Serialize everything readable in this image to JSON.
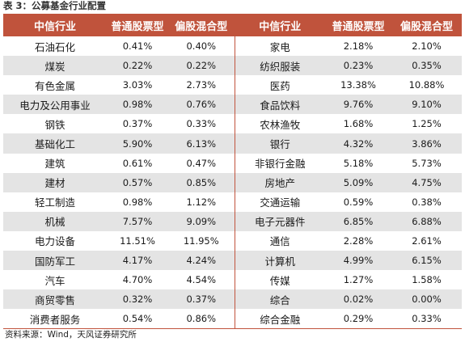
{
  "caption": "表 3：公募基金行业配置",
  "headers": [
    "中信行业",
    "普通股票型",
    "偏股混合型",
    "中信行业",
    "普通股票型",
    "偏股混合型"
  ],
  "rows": [
    [
      "石油石化",
      "0.41%",
      "0.40%",
      "家电",
      "2.18%",
      "2.10%"
    ],
    [
      "煤炭",
      "0.22%",
      "0.22%",
      "纺织服装",
      "0.23%",
      "0.35%"
    ],
    [
      "有色金属",
      "3.03%",
      "2.73%",
      "医药",
      "13.38%",
      "10.88%"
    ],
    [
      "电力及公用事业",
      "0.98%",
      "0.76%",
      "食品饮料",
      "9.76%",
      "9.10%"
    ],
    [
      "钢铁",
      "0.37%",
      "0.33%",
      "农林渔牧",
      "1.68%",
      "1.25%"
    ],
    [
      "基础化工",
      "5.90%",
      "6.13%",
      "银行",
      "4.32%",
      "3.86%"
    ],
    [
      "建筑",
      "0.61%",
      "0.47%",
      "非银行金融",
      "5.18%",
      "5.73%"
    ],
    [
      "建材",
      "0.57%",
      "0.85%",
      "房地产",
      "5.09%",
      "4.75%"
    ],
    [
      "轻工制造",
      "0.98%",
      "1.12%",
      "交通运输",
      "0.59%",
      "0.38%"
    ],
    [
      "机械",
      "7.57%",
      "9.09%",
      "电子元器件",
      "6.85%",
      "6.88%"
    ],
    [
      "电力设备",
      "11.51%",
      "11.95%",
      "通信",
      "2.28%",
      "2.61%"
    ],
    [
      "国防军工",
      "4.17%",
      "4.24%",
      "计算机",
      "4.99%",
      "6.15%"
    ],
    [
      "汽车",
      "4.70%",
      "4.54%",
      "传媒",
      "1.27%",
      "1.58%"
    ],
    [
      "商贸零售",
      "0.32%",
      "0.37%",
      "综合",
      "0.02%",
      "0.00%"
    ],
    [
      "消费者服务",
      "0.54%",
      "0.86%",
      "综合金融",
      "0.29%",
      "0.33%"
    ]
  ],
  "source": "资料来源：Wind，天风证券研究所",
  "colors": {
    "header_bg": "#c0533c",
    "alt_row_bg": "#e4e4e4"
  }
}
